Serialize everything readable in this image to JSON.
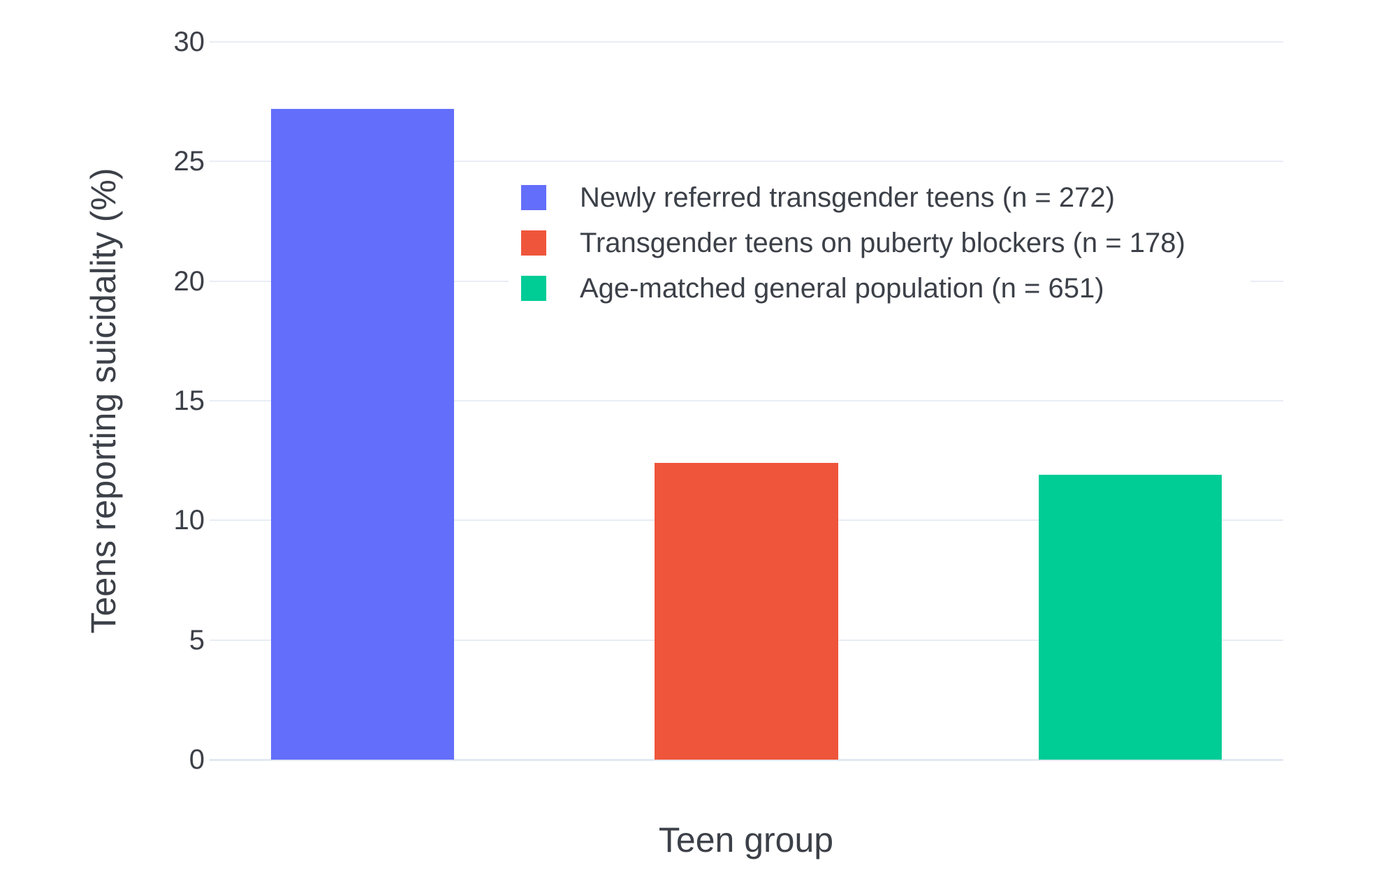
{
  "chart_data": {
    "type": "bar",
    "title": "",
    "xlabel": "Teen group",
    "ylabel": "Teens reporting suicidality (%)",
    "ylim": [
      0,
      30
    ],
    "yticks": [
      0,
      5,
      10,
      15,
      20,
      25,
      30
    ],
    "grid": true,
    "legend_position": "inside top-center",
    "categories": [
      "Newly referred transgender teens (n = 272)",
      "Transgender teens on puberty blockers (n = 178)",
      "Age-matched general population (n = 651)"
    ],
    "values": [
      27.2,
      12.4,
      11.9
    ],
    "series_colors": [
      "#636EFA",
      "#EF553B",
      "#00CC96"
    ]
  },
  "legend": {
    "items": [
      {
        "label": "Newly referred transgender teens (n = 272)",
        "color": "#636EFA"
      },
      {
        "label": "Transgender teens on puberty blockers (n = 178)",
        "color": "#EF553B"
      },
      {
        "label": "Age-matched general population (n = 651)",
        "color": "#00CC96"
      }
    ]
  },
  "colors": {
    "background": "#FFFFFF",
    "gridline": "#E8EDF5",
    "zeroline": "#E2E8F1",
    "text": "#3C4048"
  }
}
